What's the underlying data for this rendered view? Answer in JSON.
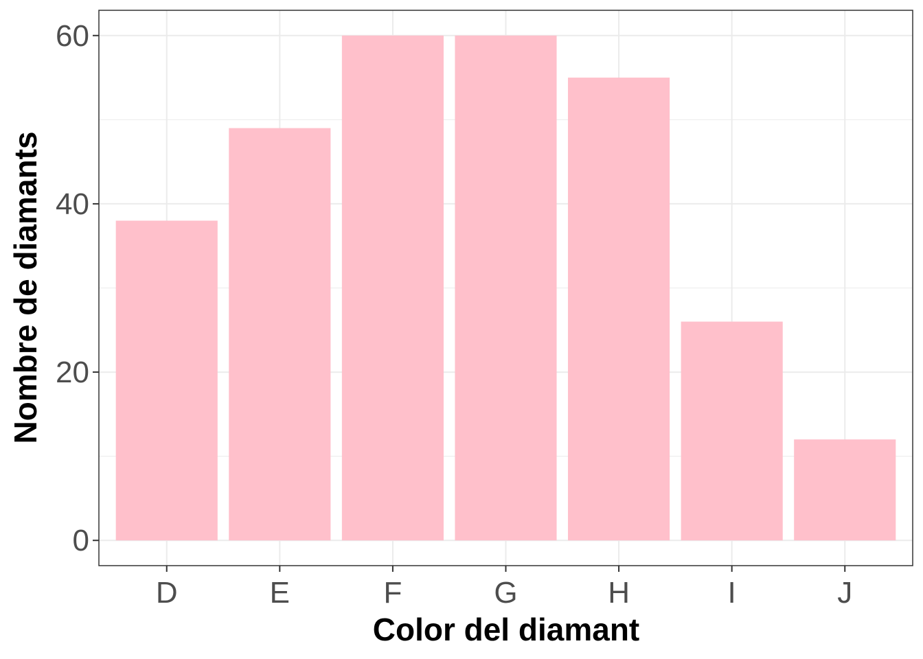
{
  "chart_data": {
    "type": "bar",
    "title": "",
    "xlabel": "Color del diamant",
    "ylabel": "Nombre de diamants",
    "categories": [
      "D",
      "E",
      "F",
      "G",
      "H",
      "I",
      "J"
    ],
    "values": [
      38,
      49,
      60,
      60,
      55,
      26,
      12
    ],
    "yticks": [
      0,
      20,
      40,
      60
    ],
    "ylim": [
      -3,
      63
    ],
    "grid": true,
    "bar_color": "#FFC0CB",
    "grid_color": "#EBEBEB",
    "panel_border_color": "#333333"
  }
}
